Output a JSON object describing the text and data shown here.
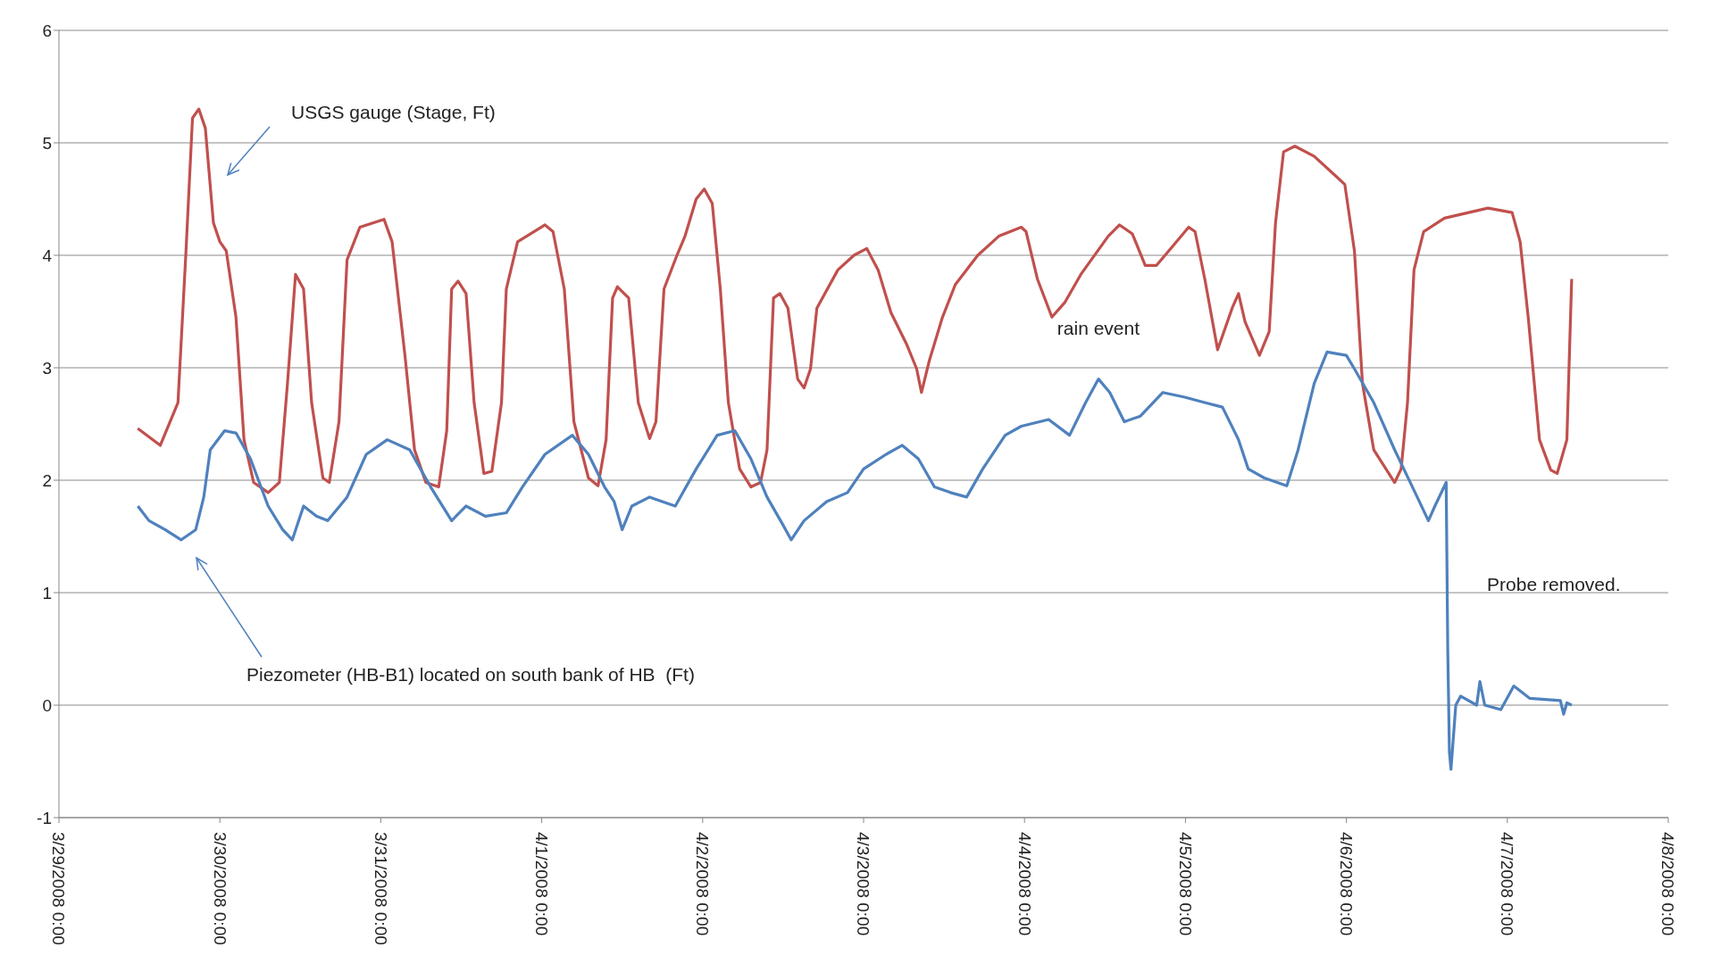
{
  "chart_data": {
    "type": "line",
    "xlim": [
      "2008-03-29",
      "2008-04-08"
    ],
    "xticks": [
      {
        "value": "2008-03-29",
        "label": "3/29/2008 0:00"
      },
      {
        "value": "2008-03-30",
        "label": "3/30/2008 0:00"
      },
      {
        "value": "2008-03-31",
        "label": "3/31/2008 0:00"
      },
      {
        "value": "2008-04-01",
        "label": "4/1/2008 0:00"
      },
      {
        "value": "2008-04-02",
        "label": "4/2/2008 0:00"
      },
      {
        "value": "2008-04-03",
        "label": "4/3/2008 0:00"
      },
      {
        "value": "2008-04-04",
        "label": "4/4/2008 0:00"
      },
      {
        "value": "2008-04-05",
        "label": "4/5/2008 0:00"
      },
      {
        "value": "2008-04-06",
        "label": "4/6/2008 0:00"
      },
      {
        "value": "2008-04-07",
        "label": "4/7/2008 0:00"
      },
      {
        "value": "2008-04-08",
        "label": "4/8/2008 0:00"
      }
    ],
    "ylim": [
      -1,
      6
    ],
    "yticks": [
      -1,
      0,
      1,
      2,
      3,
      4,
      5,
      6
    ],
    "grid": "y",
    "series": [
      {
        "color": "#c0504d",
        "x": [
          "2008-03-29T11:45",
          "2008-03-29T15:07",
          "2008-03-29T17:45",
          "2008-03-29T18:57",
          "2008-03-29T19:55",
          "2008-03-29T20:52",
          "2008-03-29T21:50",
          "2008-03-29T23:02",
          "2008-03-30T00:00",
          "2008-03-30T00:57",
          "2008-03-30T02:24",
          "2008-03-30T03:36",
          "2008-03-30T05:02",
          "2008-03-30T07:12",
          "2008-03-30T08:52",
          "2008-03-30T10:05",
          "2008-03-30T11:17",
          "2008-03-30T12:29",
          "2008-03-30T13:41",
          "2008-03-30T15:22",
          "2008-03-30T16:19",
          "2008-03-30T17:46",
          "2008-03-30T18:58",
          "2008-03-30T20:53",
          "2008-03-31T00:29",
          "2008-03-31T01:41",
          "2008-03-31T03:36",
          "2008-03-31T05:02",
          "2008-03-31T06:43",
          "2008-03-31T08:38",
          "2008-03-31T09:50",
          "2008-03-31T10:34",
          "2008-03-31T11:31",
          "2008-03-31T12:43",
          "2008-03-31T13:55",
          "2008-03-31T15:22",
          "2008-03-31T16:34",
          "2008-03-31T18:00",
          "2008-03-31T18:43",
          "2008-03-31T20:24",
          "2008-04-01T00:29",
          "2008-04-01T01:41",
          "2008-04-01T03:22",
          "2008-04-01T04:48",
          "2008-04-01T06:58",
          "2008-04-01T08:24",
          "2008-04-01T09:36",
          "2008-04-01T10:34",
          "2008-04-01T11:17",
          "2008-04-01T12:58",
          "2008-04-01T14:24",
          "2008-04-01T16:05",
          "2008-04-01T17:02",
          "2008-04-01T18:14",
          "2008-04-01T20:10",
          "2008-04-01T21:22",
          "2008-04-01T23:02",
          "2008-04-02T00:14",
          "2008-04-02T01:26",
          "2008-04-02T02:38",
          "2008-04-02T03:50",
          "2008-04-02T05:31",
          "2008-04-02T07:12",
          "2008-04-02T08:38",
          "2008-04-02T09:36",
          "2008-04-02T10:34",
          "2008-04-02T11:31",
          "2008-04-02T12:43",
          "2008-04-02T14:10",
          "2008-04-02T15:07",
          "2008-04-02T16:05",
          "2008-04-02T17:02",
          "2008-04-02T20:10",
          "2008-04-02T22:34",
          "2008-04-03T00:29",
          "2008-04-03T02:10",
          "2008-04-03T04:05",
          "2008-04-03T06:29",
          "2008-04-03T07:55",
          "2008-04-03T08:38",
          "2008-04-03T09:50",
          "2008-04-03T11:46",
          "2008-04-03T13:41",
          "2008-04-03T17:02",
          "2008-04-03T20:10",
          "2008-04-03T23:31",
          "2008-04-04T00:14",
          "2008-04-04T01:55",
          "2008-04-04T04:05",
          "2008-04-04T06:00",
          "2008-04-04T08:24",
          "2008-04-04T12:29",
          "2008-04-04T14:10",
          "2008-04-04T16:05",
          "2008-04-04T18:00",
          "2008-04-04T19:41",
          "2008-04-04T22:05",
          "2008-04-05T00:29",
          "2008-04-05T01:26",
          "2008-04-05T02:53",
          "2008-04-05T04:48",
          "2008-04-05T06:58",
          "2008-04-05T07:55",
          "2008-04-05T08:53",
          "2008-04-05T11:02",
          "2008-04-05T12:29",
          "2008-04-05T13:26",
          "2008-04-05T14:38",
          "2008-04-05T16:19",
          "2008-04-05T19:12",
          "2008-04-05T22:19",
          "2008-04-05T23:46",
          "2008-04-06T01:12",
          "2008-04-06T02:24",
          "2008-04-06T04:05",
          "2008-04-06T07:12",
          "2008-04-06T08:10",
          "2008-04-06T09:07",
          "2008-04-06T10:05",
          "2008-04-06T11:31",
          "2008-04-06T14:38",
          "2008-04-06T21:07",
          "2008-04-07T00:43",
          "2008-04-07T01:55",
          "2008-04-07T03:07",
          "2008-04-07T04:48",
          "2008-04-07T06:29",
          "2008-04-07T07:26",
          "2008-04-07T08:53",
          "2008-04-07T09:36"
        ],
        "values": [
          2.46,
          2.31,
          2.69,
          4.04,
          5.22,
          5.3,
          5.13,
          4.29,
          4.12,
          4.04,
          3.45,
          2.36,
          1.98,
          1.89,
          1.98,
          2.86,
          3.83,
          3.7,
          2.69,
          2.02,
          1.98,
          2.52,
          3.96,
          4.25,
          4.32,
          4.12,
          3.11,
          2.27,
          1.98,
          1.94,
          2.44,
          3.7,
          3.77,
          3.66,
          2.69,
          2.06,
          2.08,
          2.69,
          3.7,
          4.12,
          4.27,
          4.21,
          3.7,
          2.52,
          2.02,
          1.95,
          2.36,
          3.62,
          3.72,
          3.62,
          2.69,
          2.37,
          2.52,
          3.7,
          4.0,
          4.17,
          4.5,
          4.59,
          4.46,
          3.7,
          2.69,
          2.1,
          1.94,
          1.98,
          2.27,
          3.62,
          3.66,
          3.53,
          2.9,
          2.82,
          2.99,
          3.53,
          3.87,
          4.0,
          4.06,
          3.87,
          3.49,
          3.2,
          2.99,
          2.78,
          3.07,
          3.45,
          3.74,
          4.0,
          4.17,
          4.25,
          4.21,
          3.79,
          3.45,
          3.58,
          3.83,
          4.17,
          4.27,
          4.19,
          3.91,
          3.91,
          4.08,
          4.25,
          4.21,
          3.79,
          3.16,
          3.53,
          3.66,
          3.41,
          3.11,
          3.32,
          4.29,
          4.92,
          4.97,
          4.88,
          4.71,
          4.63,
          4.04,
          2.86,
          2.27,
          1.98,
          2.1,
          2.69,
          3.87,
          4.21,
          4.33,
          4.42,
          4.38,
          4.12,
          3.45,
          2.36,
          2.09,
          2.06,
          2.36,
          3.79
        ]
      },
      {
        "color": "#4f81bd",
        "x": [
          "2008-03-29T11:46",
          "2008-03-29T13:26",
          "2008-03-29T15:50",
          "2008-03-29T18:14",
          "2008-03-29T20:24",
          "2008-03-29T21:36",
          "2008-03-29T22:34",
          "2008-03-30T00:43",
          "2008-03-30T02:24",
          "2008-03-30T04:34",
          "2008-03-30T07:12",
          "2008-03-30T09:22",
          "2008-03-30T10:48",
          "2008-03-30T12:29",
          "2008-03-30T14:24",
          "2008-03-30T16:05",
          "2008-03-30T18:58",
          "2008-03-30T21:50",
          "2008-03-31T00:58",
          "2008-03-31T04:19",
          "2008-03-31T07:26",
          "2008-03-31T10:34",
          "2008-03-31T12:43",
          "2008-03-31T15:36",
          "2008-03-31T18:43",
          "2008-03-31T21:07",
          "2008-04-01T00:29",
          "2008-04-01T04:34",
          "2008-04-01T06:58",
          "2008-04-01T09:22",
          "2008-04-01T10:48",
          "2008-04-01T12:00",
          "2008-04-01T13:26",
          "2008-04-01T16:05",
          "2008-04-01T19:55",
          "2008-04-01T23:02",
          "2008-04-02T02:10",
          "2008-04-02T04:48",
          "2008-04-02T07:12",
          "2008-04-02T09:36",
          "2008-04-02T12:00",
          "2008-04-02T13:12",
          "2008-04-02T15:07",
          "2008-04-02T18:29",
          "2008-04-02T21:36",
          "2008-04-03T00:00",
          "2008-04-03T03:22",
          "2008-04-03T05:46",
          "2008-04-03T08:10",
          "2008-04-03T10:34",
          "2008-04-03T12:58",
          "2008-04-03T15:22",
          "2008-04-03T17:46",
          "2008-04-03T21:07",
          "2008-04-03T23:31",
          "2008-04-04T03:36",
          "2008-04-04T06:43",
          "2008-04-04T09:07",
          "2008-04-04T11:02",
          "2008-04-04T12:43",
          "2008-04-04T14:53",
          "2008-04-04T17:17",
          "2008-04-04T20:38",
          "2008-04-04T23:46",
          "2008-04-05T02:53",
          "2008-04-05T05:31",
          "2008-04-05T07:55",
          "2008-04-05T09:22",
          "2008-04-05T11:46",
          "2008-04-05T15:07",
          "2008-04-05T16:48",
          "2008-04-05T19:12",
          "2008-04-05T21:07",
          "2008-04-06T00:00",
          "2008-04-06T01:12",
          "2008-04-06T04:05",
          "2008-04-06T07:12",
          "2008-04-06T10:34",
          "2008-04-06T12:14",
          "2008-04-06T13:12",
          "2008-04-06T14:53",
          "2008-04-06T15:07",
          "2008-04-06T15:22",
          "2008-04-06T15:36",
          "2008-04-06T16:19",
          "2008-04-06T17:02",
          "2008-04-06T19:26",
          "2008-04-06T19:55",
          "2008-04-06T20:38",
          "2008-04-06T23:02",
          "2008-04-07T00:58",
          "2008-04-07T03:22",
          "2008-04-07T07:55",
          "2008-04-07T08:24",
          "2008-04-07T08:53",
          "2008-04-07T09:36"
        ],
        "values": [
          1.77,
          1.64,
          1.56,
          1.47,
          1.56,
          1.85,
          2.27,
          2.44,
          2.42,
          2.19,
          1.77,
          1.56,
          1.47,
          1.77,
          1.68,
          1.64,
          1.85,
          2.23,
          2.36,
          2.27,
          1.94,
          1.64,
          1.77,
          1.68,
          1.71,
          1.94,
          2.23,
          2.4,
          2.23,
          1.94,
          1.81,
          1.56,
          1.77,
          1.85,
          1.77,
          2.1,
          2.4,
          2.44,
          2.19,
          1.85,
          1.6,
          1.47,
          1.64,
          1.81,
          1.89,
          2.1,
          2.23,
          2.31,
          2.19,
          1.94,
          1.89,
          1.85,
          2.1,
          2.4,
          2.48,
          2.54,
          2.4,
          2.69,
          2.9,
          2.78,
          2.52,
          2.57,
          2.78,
          2.74,
          2.69,
          2.65,
          2.36,
          2.1,
          2.02,
          1.95,
          2.27,
          2.86,
          3.14,
          3.11,
          2.99,
          2.69,
          2.27,
          1.85,
          1.64,
          1.77,
          1.98,
          0.5,
          -0.42,
          -0.57,
          0.0,
          0.08,
          0.0,
          0.21,
          0.0,
          -0.04,
          0.17,
          0.06,
          0.04,
          -0.08,
          0.02,
          0.0
        ]
      }
    ],
    "annotations": [
      "USGS gauge (Stage, Ft)",
      "Piezometer (HB-B1) located on south bank of HB  (Ft)",
      {
        "text": "rain event",
        "x": "2008-04-04T04:05",
        "y": 3.45
      },
      {
        "text": "Probe removed.",
        "x": "2008-04-06T15:07",
        "y": 1.0
      }
    ]
  }
}
